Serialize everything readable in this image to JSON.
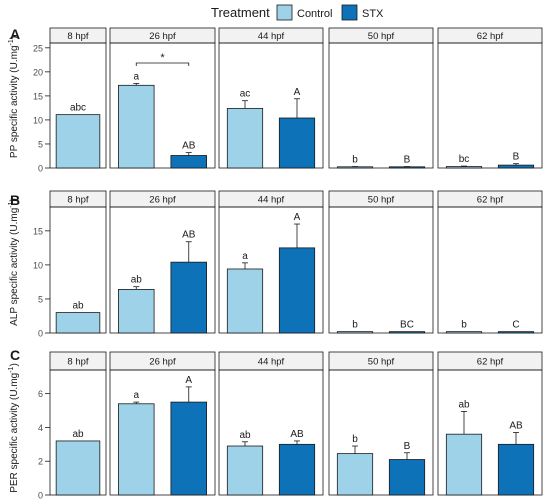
{
  "legend": {
    "title": "Treatment",
    "items": [
      {
        "label": "Control",
        "color": "#9ED2E8"
      },
      {
        "label": "STX",
        "color": "#0E72B8"
      }
    ]
  },
  "colors": {
    "control": "#9ED2E8",
    "stx": "#0E72B8",
    "strip_fill": "#F2F2F2",
    "stroke": "#1a1a1a"
  },
  "chart_data": [
    {
      "type": "bar",
      "panel_letter": "A",
      "ylabel": "PP specific activity (U.mg",
      "ylabel_superscript": "-1",
      "ylabel_close": ")",
      "ylim": [
        0,
        26
      ],
      "yticks": [
        0,
        5,
        10,
        15,
        20,
        25
      ],
      "facets": [
        "8 hpf",
        "26 hpf",
        "44 hpf",
        "50 hpf",
        "62 hpf"
      ],
      "series": [
        {
          "name": "Control",
          "values": [
            11.1,
            17.2,
            12.4,
            0.2,
            0.3
          ],
          "errors": [
            0,
            0.4,
            1.6,
            0.1,
            0.1
          ],
          "labels": [
            "abc",
            "a",
            "ac",
            "b",
            "bc"
          ]
        },
        {
          "name": "STX",
          "values": [
            null,
            2.6,
            10.4,
            0.2,
            0.6
          ],
          "errors": [
            null,
            0.6,
            4.0,
            0.1,
            0.3
          ],
          "labels": [
            null,
            "AB",
            "A",
            "B",
            "B"
          ]
        }
      ],
      "annotations": [
        {
          "facet": "26 hpf",
          "text": "*"
        }
      ]
    },
    {
      "type": "bar",
      "panel_letter": "B",
      "ylabel": "ALP specific activity (U.mg",
      "ylabel_superscript": "-1",
      "ylabel_close": ")",
      "ylim": [
        0,
        18.5
      ],
      "yticks": [
        0,
        5,
        10,
        15
      ],
      "facets": [
        "8 hpf",
        "26 hpf",
        "44 hpf",
        "50 hpf",
        "62 hpf"
      ],
      "series": [
        {
          "name": "Control",
          "values": [
            3.0,
            6.4,
            9.4,
            0.2,
            0.2
          ],
          "errors": [
            0,
            0.4,
            0.9,
            0,
            0
          ],
          "labels": [
            "ab",
            "ab",
            "a",
            "b",
            "b"
          ]
        },
        {
          "name": "STX",
          "values": [
            null,
            10.4,
            12.5,
            0.2,
            0.2
          ],
          "errors": [
            null,
            3.0,
            3.5,
            0,
            0
          ],
          "labels": [
            null,
            "AB",
            "A",
            "BC",
            "C"
          ]
        }
      ],
      "annotations": []
    },
    {
      "type": "bar",
      "panel_letter": "C",
      "ylabel": "PER specific activity (U.mg",
      "ylabel_superscript": "-1",
      "ylabel_close": ")",
      "ylim": [
        0,
        7.4
      ],
      "yticks": [
        0,
        2,
        4,
        6
      ],
      "facets": [
        "8 hpf",
        "26 hpf",
        "44 hpf",
        "50 hpf",
        "62 hpf"
      ],
      "series": [
        {
          "name": "Control",
          "values": [
            3.2,
            5.4,
            2.9,
            2.45,
            3.6
          ],
          "errors": [
            0,
            0.1,
            0.25,
            0.45,
            1.35
          ],
          "labels": [
            "ab",
            "a",
            "ab",
            "b",
            "ab"
          ]
        },
        {
          "name": "STX",
          "values": [
            null,
            5.5,
            3.0,
            2.1,
            3.0
          ],
          "errors": [
            null,
            0.9,
            0.2,
            0.4,
            0.7
          ],
          "labels": [
            null,
            "A",
            "AB",
            "B",
            "AB"
          ]
        }
      ],
      "annotations": []
    }
  ]
}
